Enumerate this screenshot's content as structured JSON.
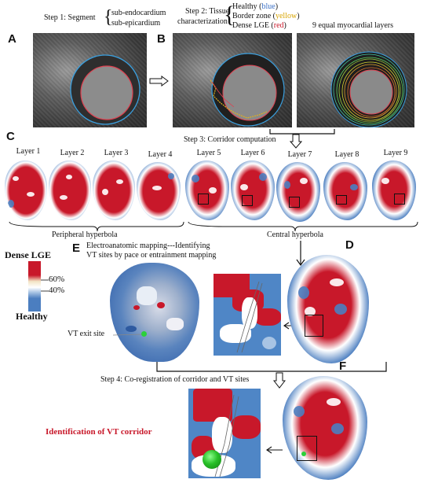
{
  "step1": {
    "label": "Step 1: Segment",
    "items": [
      "sub-endocardium",
      "sub-epicardium"
    ]
  },
  "step2": {
    "label_line1": "Step 2: Tissue",
    "label_line2": "characterization",
    "items": [
      {
        "text": "Healthy (",
        "tag": "blue",
        "tag_color": "#3a6fc4",
        "close": ")"
      },
      {
        "text": "Border zone (",
        "tag": "yellow",
        "tag_color": "#d8a400",
        "close": ")"
      },
      {
        "text": "Dense LGE (",
        "tag": "red",
        "tag_color": "#c8182a",
        "close": ")"
      }
    ]
  },
  "nine_layers_label": "9 equal myocardial layers",
  "step3": "Step 3: Corridor computation",
  "step4": "Step 4: Co-registration of corridor and VT sites",
  "panels": [
    "A",
    "B",
    "C",
    "D",
    "E",
    "F"
  ],
  "layers": [
    "Layer 1",
    "Layer 2",
    "Layer 3",
    "Layer 4",
    "Layer 5",
    "Layer 6",
    "Layer 7",
    "Layer 8",
    "Layer 9"
  ],
  "peripheral": "Peripheral hyperbola",
  "central": "Central hyperbola",
  "panel_e_title_line1": "Electroanatomic mapping---Identifying",
  "panel_e_title_line2": "VT sites by pace or entrainment mapping",
  "vt_exit": "VT exit site",
  "identification": "Identification of  VT corridor",
  "legend": {
    "top": "Dense LGE",
    "p60": "60%",
    "p40": "40%",
    "bottom": "Healthy",
    "colors": {
      "dense": "#c8182a",
      "border": "#f2e4c4",
      "healthy": "#4b7ec0"
    }
  }
}
